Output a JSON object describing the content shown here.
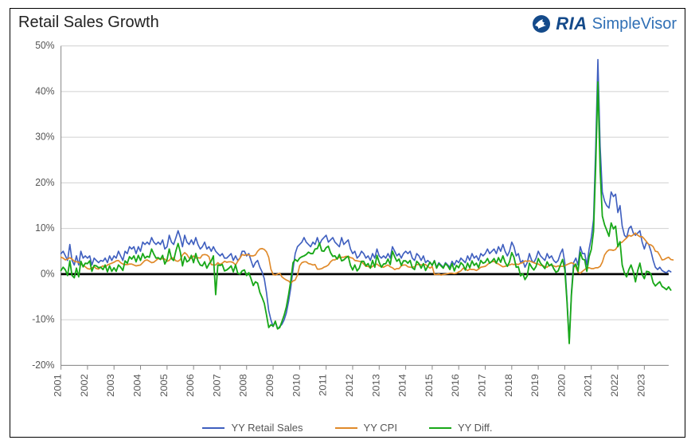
{
  "chart": {
    "title": "Retail Sales Growth",
    "logo": {
      "ria": "RIA",
      "simplevisor": "SimpleVisor"
    },
    "type": "line",
    "background_color": "#ffffff",
    "border_color": "#000000",
    "grid_color": "#d0d0d0",
    "axis_color": "#888888",
    "zero_line_color": "#000000",
    "label_color": "#555555",
    "title_fontsize": 20,
    "tick_fontsize": 12,
    "legend_fontsize": 13,
    "y": {
      "min": -20,
      "max": 50,
      "ticks": [
        -20,
        -10,
        0,
        10,
        20,
        30,
        40,
        50
      ],
      "tick_labels": [
        "-20%",
        "-10%",
        "0%",
        "10%",
        "20%",
        "30%",
        "40%",
        "50%"
      ],
      "label_suffix": "%"
    },
    "x": {
      "years": [
        2001,
        2002,
        2003,
        2004,
        2005,
        2006,
        2007,
        2008,
        2009,
        2010,
        2011,
        2012,
        2013,
        2014,
        2015,
        2016,
        2017,
        2018,
        2019,
        2020,
        2021,
        2022,
        2023
      ],
      "points_per_year": 12,
      "n_points": 276,
      "label_rotation": -90
    },
    "series": [
      {
        "name": "yy_retail_sales",
        "label": "YY Retail Sales",
        "color": "#3f5fbf",
        "line_width": 1.6,
        "data": [
          4.5,
          5.0,
          4.0,
          3.0,
          6.5,
          3.0,
          2.0,
          4.0,
          2.0,
          5.0,
          3.5,
          4.0,
          3.5,
          4.0,
          2.0,
          3.5,
          3.0,
          2.5,
          3.0,
          2.8,
          3.5,
          2.5,
          4.0,
          3.0,
          4.0,
          3.5,
          5.0,
          4.0,
          3.0,
          5.0,
          4.5,
          6.0,
          5.5,
          6.0,
          4.5,
          6.0,
          5.0,
          7.0,
          6.5,
          7.0,
          6.5,
          8.0,
          7.0,
          6.5,
          7.0,
          6.5,
          7.5,
          5.5,
          6.0,
          8.5,
          7.0,
          6.5,
          8.0,
          9.5,
          8.0,
          6.0,
          8.5,
          7.0,
          6.5,
          7.5,
          6.5,
          8.0,
          6.5,
          5.5,
          6.0,
          7.0,
          5.5,
          6.0,
          5.0,
          6.0,
          5.0,
          4.5,
          4.0,
          4.5,
          3.5,
          3.5,
          4.0,
          4.5,
          3.0,
          4.0,
          3.0,
          3.5,
          5.0,
          5.0,
          4.0,
          4.5,
          3.0,
          1.5,
          2.5,
          3.0,
          1.5,
          0.5,
          -1.0,
          -4.0,
          -8.0,
          -10.0,
          -11.5,
          -10.5,
          -12.0,
          -11.5,
          -11.0,
          -10.0,
          -8.5,
          -6.0,
          -3.0,
          1.0,
          4.5,
          6.0,
          6.5,
          7.0,
          8.0,
          7.0,
          6.5,
          6.0,
          7.0,
          6.5,
          8.0,
          6.5,
          7.5,
          8.0,
          8.5,
          7.0,
          7.5,
          8.0,
          7.0,
          6.5,
          6.0,
          8.0,
          6.5,
          7.0,
          7.5,
          5.5,
          4.5,
          5.0,
          3.5,
          4.0,
          5.0,
          4.5,
          3.5,
          4.0,
          3.0,
          4.5,
          3.5,
          5.5,
          4.0,
          3.5,
          4.0,
          3.5,
          4.5,
          3.5,
          6.0,
          5.0,
          4.0,
          4.5,
          3.5,
          4.5,
          5.0,
          4.5,
          5.0,
          3.5,
          3.0,
          4.5,
          4.0,
          3.0,
          4.0,
          2.5,
          3.0,
          2.5,
          2.0,
          3.0,
          1.5,
          2.5,
          2.0,
          1.5,
          2.5,
          2.0,
          1.5,
          2.8,
          2.0,
          3.0,
          2.5,
          3.5,
          3.0,
          2.5,
          4.0,
          3.0,
          4.5,
          3.5,
          4.0,
          3.0,
          4.5,
          4.0,
          4.5,
          5.5,
          4.5,
          5.0,
          5.5,
          4.5,
          6.0,
          5.0,
          6.5,
          5.0,
          4.0,
          5.0,
          7.0,
          6.0,
          4.0,
          4.5,
          2.5,
          3.0,
          1.5,
          2.5,
          4.5,
          3.0,
          2.5,
          3.5,
          5.0,
          4.0,
          3.5,
          3.0,
          4.5,
          3.5,
          4.0,
          3.0,
          2.5,
          3.0,
          4.5,
          5.5,
          2.5,
          -5.5,
          -15.0,
          -4.0,
          2.5,
          3.5,
          2.0,
          6.0,
          4.5,
          4.5,
          2.0,
          5.5,
          8.0,
          12.0,
          28.0,
          47.0,
          28.0,
          18.0,
          16.0,
          15.0,
          14.5,
          18.0,
          17.0,
          17.5,
          13.5,
          15.0,
          10.5,
          8.5,
          8.0,
          10.0,
          10.5,
          9.0,
          8.5,
          9.0,
          9.5,
          7.0,
          5.5,
          7.0,
          6.5,
          5.0,
          3.0,
          1.5,
          1.0,
          1.5,
          0.8,
          0.5,
          0.3,
          0.8,
          0.5
        ]
      },
      {
        "name": "yy_cpi",
        "label": "YY CPI",
        "color": "#e08a2a",
        "line_width": 1.6,
        "data": [
          3.7,
          3.5,
          3.1,
          3.3,
          3.6,
          3.3,
          2.8,
          2.7,
          2.6,
          2.2,
          1.9,
          1.6,
          1.2,
          1.1,
          1.4,
          1.6,
          1.2,
          1.1,
          1.5,
          1.8,
          1.5,
          2.0,
          2.2,
          2.4,
          2.6,
          2.9,
          3.0,
          2.5,
          2.2,
          2.1,
          2.1,
          2.2,
          2.2,
          2.0,
          1.8,
          1.9,
          2.0,
          2.5,
          3.0,
          3.1,
          2.8,
          2.5,
          2.6,
          3.0,
          3.4,
          3.3,
          3.4,
          3.3,
          2.8,
          3.0,
          3.6,
          3.5,
          2.9,
          2.8,
          3.2,
          4.2,
          4.7,
          4.3,
          3.5,
          3.4,
          4.0,
          3.5,
          3.6,
          3.5,
          4.2,
          4.3,
          4.2,
          3.8,
          2.1,
          2.0,
          2.0,
          2.5,
          2.1,
          2.4,
          2.8,
          2.6,
          2.7,
          2.7,
          2.5,
          2.0,
          2.8,
          3.5,
          4.3,
          4.1,
          4.3,
          4.2,
          4.0,
          4.0,
          4.2,
          5.0,
          5.5,
          5.6,
          5.4,
          4.9,
          3.7,
          1.1,
          -0.1,
          -0.2,
          0.0,
          0.2,
          -0.6,
          -1.0,
          -1.3,
          -1.5,
          -2.0,
          -1.5,
          -1.3,
          -0.2,
          1.8,
          2.5,
          2.7,
          2.7,
          2.3,
          2.2,
          2.0,
          2.1,
          1.1,
          1.1,
          1.2,
          1.5,
          1.7,
          2.0,
          2.7,
          3.1,
          3.1,
          3.5,
          3.6,
          3.7,
          3.7,
          3.9,
          3.9,
          3.6,
          3.5,
          3.0,
          2.9,
          2.8,
          2.7,
          2.2,
          1.7,
          1.7,
          1.4,
          1.7,
          2.0,
          2.2,
          1.8,
          1.6,
          1.5,
          1.8,
          2.0,
          1.6,
          1.4,
          1.0,
          1.2,
          1.2,
          1.8,
          2.0,
          2.0,
          1.6,
          1.5,
          1.5,
          1.6,
          2.1,
          2.1,
          2.0,
          2.1,
          2.1,
          1.7,
          1.3,
          1.7,
          -0.1,
          -0.1,
          0.0,
          -0.2,
          -0.1,
          0.0,
          0.1,
          0.2,
          0.2,
          0.1,
          0.2,
          0.5,
          0.7,
          1.3,
          1.1,
          0.8,
          1.1,
          1.0,
          1.0,
          0.8,
          1.1,
          1.5,
          1.6,
          1.7,
          2.1,
          2.5,
          2.7,
          2.8,
          2.4,
          2.2,
          1.9,
          1.6,
          1.7,
          1.9,
          2.0,
          2.2,
          2.1,
          2.2,
          2.1,
          2.4,
          2.5,
          2.9,
          2.8,
          2.9,
          2.7,
          2.5,
          2.3,
          2.2,
          1.9,
          1.9,
          1.6,
          1.5,
          2.0,
          1.9,
          1.8,
          1.6,
          1.8,
          1.7,
          1.7,
          1.8,
          2.1,
          2.3,
          2.5,
          2.3,
          1.5,
          0.4,
          0.2,
          0.6,
          1.0,
          1.3,
          1.4,
          1.2,
          1.2,
          1.4,
          1.4,
          1.7,
          2.6,
          4.2,
          4.9,
          5.3,
          5.3,
          5.2,
          5.4,
          6.2,
          6.8,
          7.0,
          7.5,
          7.9,
          8.5,
          8.3,
          8.6,
          9.0,
          8.5,
          8.2,
          8.2,
          7.7,
          7.1,
          6.5,
          6.4,
          6.0,
          5.0,
          4.9,
          4.1,
          3.1,
          3.2,
          3.5,
          3.7,
          3.2,
          3.1
        ]
      },
      {
        "name": "yy_diff",
        "label": "YY Diff.",
        "color": "#19a819",
        "line_width": 1.8,
        "data": [
          0.8,
          1.5,
          0.9,
          -0.3,
          2.9,
          -0.3,
          -0.8,
          1.3,
          -0.6,
          2.8,
          1.6,
          2.4,
          2.3,
          2.9,
          0.6,
          1.9,
          1.8,
          1.4,
          1.5,
          1.0,
          2.0,
          0.5,
          1.8,
          0.6,
          1.4,
          0.6,
          2.0,
          1.5,
          0.8,
          2.9,
          2.4,
          3.8,
          3.3,
          4.0,
          2.7,
          4.1,
          3.0,
          4.5,
          3.5,
          3.9,
          3.7,
          5.5,
          4.4,
          3.5,
          3.6,
          3.2,
          4.1,
          2.2,
          3.2,
          5.5,
          3.4,
          3.0,
          5.1,
          6.7,
          4.8,
          1.8,
          3.8,
          2.7,
          3.0,
          4.1,
          2.5,
          4.5,
          2.9,
          2.0,
          1.8,
          2.7,
          1.3,
          2.2,
          2.9,
          4.0,
          -4.5,
          2.0,
          1.9,
          2.1,
          0.7,
          0.9,
          1.3,
          1.8,
          0.5,
          2.0,
          0.2,
          0.0,
          0.7,
          0.9,
          -0.3,
          0.3,
          -1.0,
          -2.5,
          -1.7,
          -2.0,
          -4.0,
          -5.1,
          -6.4,
          -8.9,
          -11.7,
          -11.1,
          -11.4,
          -10.3,
          -12.0,
          -11.7,
          -10.4,
          -9.0,
          -7.2,
          -4.5,
          -1.5,
          2.5,
          3.2,
          2.8,
          3.5,
          3.8,
          4.0,
          4.3,
          4.8,
          4.5,
          4.5,
          5.5,
          5.6,
          6.8,
          5.1,
          5.0,
          5.8,
          6.1,
          4.7,
          3.9,
          4.0,
          3.3,
          4.3,
          2.9,
          3.1,
          3.6,
          3.9,
          1.9,
          0.9,
          2.0,
          0.7,
          1.3,
          2.8,
          2.8,
          1.8,
          2.3,
          1.3,
          3.0,
          1.5,
          4.1,
          2.6,
          1.5,
          2.2,
          2.3,
          3.3,
          2.1,
          5.0,
          3.8,
          2.8,
          3.3,
          1.9,
          2.9,
          2.9,
          2.4,
          3.0,
          1.4,
          1.0,
          2.8,
          2.3,
          1.3,
          2.3,
          0.8,
          1.7,
          2.6,
          1.9,
          2.9,
          1.3,
          2.3,
          1.8,
          1.3,
          2.3,
          1.8,
          1.0,
          2.3,
          0.7,
          1.9,
          1.4,
          2.5,
          2.0,
          0.9,
          2.4,
          1.4,
          2.9,
          1.9,
          2.4,
          1.4,
          3.0,
          2.4,
          2.6,
          3.4,
          2.4,
          2.8,
          3.4,
          2.4,
          3.6,
          2.6,
          4.0,
          2.6,
          1.7,
          2.7,
          4.7,
          3.7,
          1.5,
          1.6,
          -0.4,
          0.1,
          -1.2,
          -0.4,
          2.4,
          1.5,
          0.9,
          1.7,
          3.4,
          2.4,
          1.8,
          1.2,
          2.7,
          1.8,
          2.2,
          1.2,
          0.4,
          0.7,
          2.0,
          3.2,
          1.0,
          -6.1,
          -15.2,
          -4.6,
          1.5,
          2.2,
          0.6,
          4.8,
          3.3,
          3.1,
          0.6,
          3.8,
          5.4,
          9.4,
          23.8,
          42.1,
          22.7,
          12.7,
          10.8,
          9.6,
          8.3,
          11.2,
          9.9,
          10.5,
          6.0,
          7.1,
          2.0,
          0.2,
          -0.6,
          1.0,
          2.0,
          0.5,
          -1.7,
          0.8,
          2.4,
          -0.1,
          -1.0,
          0.6,
          0.5,
          0.0,
          -1.9,
          -2.6,
          -2.1,
          -1.7,
          -2.7,
          -3.0,
          -3.4,
          -2.8,
          -3.5
        ]
      }
    ],
    "legend": [
      {
        "label": "YY Retail Sales",
        "color": "#3f5fbf"
      },
      {
        "label": "YY CPI",
        "color": "#e08a2a"
      },
      {
        "label": "YY Diff.",
        "color": "#19a819"
      }
    ]
  }
}
